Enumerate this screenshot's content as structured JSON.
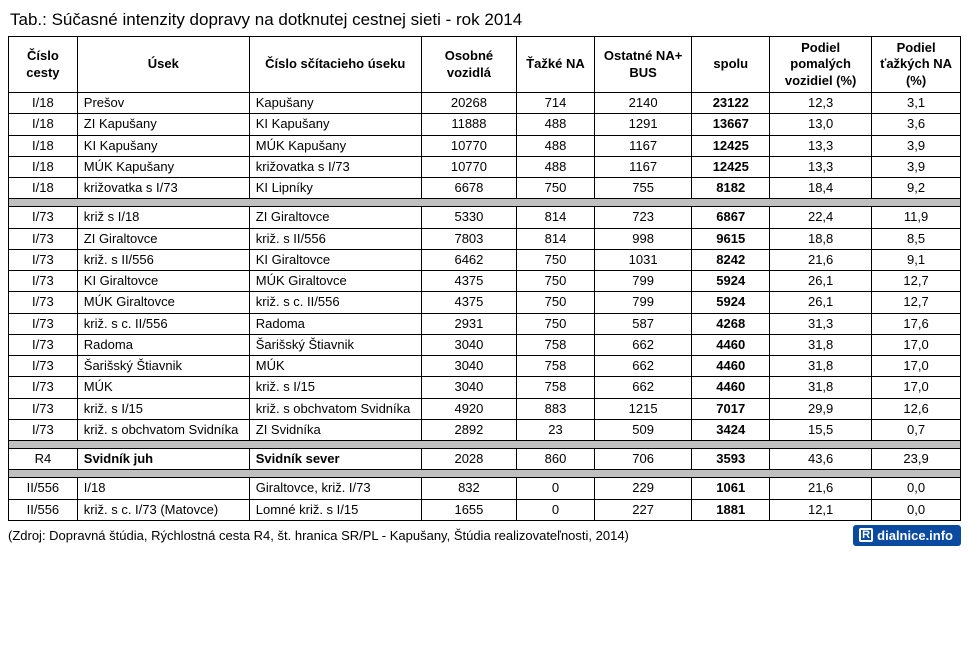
{
  "title": "Tab.: Súčasné intenzity dopravy na dotknutej cestnej sieti - rok 2014",
  "columns": [
    "Číslo cesty",
    "Úsek",
    "Číslo sčítacieho úseku",
    "Osobné vozidlá",
    "Ťažké NA",
    "Ostatné NA+ BUS",
    "spolu",
    "Podiel pomalých vozidiel (%)",
    "Podiel ťažkých NA (%)"
  ],
  "groups": [
    {
      "rows": [
        {
          "c0": "I/18",
          "c1": "Prešov",
          "c2": "Kapušany",
          "c3": "20268",
          "c4": "714",
          "c5": "2140",
          "c6": "23122",
          "c7": "12,3",
          "c8": "3,1"
        },
        {
          "c0": "I/18",
          "c1": "ZI Kapušany",
          "c2": "KI Kapušany",
          "c3": "11888",
          "c4": "488",
          "c5": "1291",
          "c6": "13667",
          "c7": "13,0",
          "c8": "3,6"
        },
        {
          "c0": "I/18",
          "c1": "KI Kapušany",
          "c2": "MÚK Kapušany",
          "c3": "10770",
          "c4": "488",
          "c5": "1167",
          "c6": "12425",
          "c7": "13,3",
          "c8": "3,9"
        },
        {
          "c0": "I/18",
          "c1": "MÚK Kapušany",
          "c2": "križovatka s I/73",
          "c3": "10770",
          "c4": "488",
          "c5": "1167",
          "c6": "12425",
          "c7": "13,3",
          "c8": "3,9"
        },
        {
          "c0": "I/18",
          "c1": "križovatka s I/73",
          "c2": "KI Lipníky",
          "c3": "6678",
          "c4": "750",
          "c5": "755",
          "c6": "8182",
          "c7": "18,4",
          "c8": "9,2"
        }
      ]
    },
    {
      "rows": [
        {
          "c0": "I/73",
          "c1": "križ s I/18",
          "c2": "ZI Giraltovce",
          "c3": "5330",
          "c4": "814",
          "c5": "723",
          "c6": "6867",
          "c7": "22,4",
          "c8": "11,9"
        },
        {
          "c0": "I/73",
          "c1": "ZI Giraltovce",
          "c2": "križ. s II/556",
          "c3": "7803",
          "c4": "814",
          "c5": "998",
          "c6": "9615",
          "c7": "18,8",
          "c8": "8,5"
        },
        {
          "c0": "I/73",
          "c1": "križ. s II/556",
          "c2": "KI Giraltovce",
          "c3": "6462",
          "c4": "750",
          "c5": "1031",
          "c6": "8242",
          "c7": "21,6",
          "c8": "9,1"
        },
        {
          "c0": "I/73",
          "c1": "KI Giraltovce",
          "c2": "MÚK Giraltovce",
          "c3": "4375",
          "c4": "750",
          "c5": "799",
          "c6": "5924",
          "c7": "26,1",
          "c8": "12,7"
        },
        {
          "c0": "I/73",
          "c1": "MÚK Giraltovce",
          "c2": "križ. s c. II/556",
          "c3": "4375",
          "c4": "750",
          "c5": "799",
          "c6": "5924",
          "c7": "26,1",
          "c8": "12,7"
        },
        {
          "c0": "I/73",
          "c1": "križ. s c. II/556",
          "c2": "Radoma",
          "c3": "2931",
          "c4": "750",
          "c5": "587",
          "c6": "4268",
          "c7": "31,3",
          "c8": "17,6"
        },
        {
          "c0": "I/73",
          "c1": "Radoma",
          "c2": "Šarišský Štiavnik",
          "c3": "3040",
          "c4": "758",
          "c5": "662",
          "c6": "4460",
          "c7": "31,8",
          "c8": "17,0"
        },
        {
          "c0": "I/73",
          "c1": "Šarišský Štiavnik",
          "c2": "MÚK",
          "c3": "3040",
          "c4": "758",
          "c5": "662",
          "c6": "4460",
          "c7": "31,8",
          "c8": "17,0"
        },
        {
          "c0": "I/73",
          "c1": "MÚK",
          "c2": "križ. s I/15",
          "c3": "3040",
          "c4": "758",
          "c5": "662",
          "c6": "4460",
          "c7": "31,8",
          "c8": "17,0"
        },
        {
          "c0": "I/73",
          "c1": "križ. s I/15",
          "c2": "križ. s obchvatom Svidníka",
          "c3": "4920",
          "c4": "883",
          "c5": "1215",
          "c6": "7017",
          "c7": "29,9",
          "c8": "12,6"
        },
        {
          "c0": "I/73",
          "c1": "križ. s obchvatom Svidníka",
          "c2": "ZI Svidníka",
          "c3": "2892",
          "c4": "23",
          "c5": "509",
          "c6": "3424",
          "c7": "15,5",
          "c8": "0,7"
        }
      ]
    },
    {
      "rows": [
        {
          "c0": "R4",
          "c1": "Svidník juh",
          "c2": "Svidník sever",
          "c3": "2028",
          "c4": "860",
          "c5": "706",
          "c6": "3593",
          "c7": "43,6",
          "c8": "23,9",
          "boldRow": true
        }
      ]
    },
    {
      "rows": [
        {
          "c0": "II/556",
          "c1": "I/18",
          "c2": "Giraltovce, križ. I/73",
          "c3": "832",
          "c4": "0",
          "c5": "229",
          "c6": "1061",
          "c7": "21,6",
          "c8": "0,0"
        },
        {
          "c0": "II/556",
          "c1": "križ. s c. I/73 (Matovce)",
          "c2": "Lomné križ. s I/15",
          "c3": "1655",
          "c4": "0",
          "c5": "227",
          "c6": "1881",
          "c7": "12,1",
          "c8": "0,0"
        }
      ]
    }
  ],
  "source": "(Zdroj: Dopravná štúdia, Rýchlostná cesta R4, št. hranica SR/PL - Kapušany, Štúdia realizovateľnosti, 2014)",
  "badge": {
    "icon": "R",
    "text": "dialnice.info"
  },
  "style": {
    "separator_bg": "#c0c0c0",
    "badge_bg": "#0a4aa0",
    "badge_fg": "#ffffff"
  }
}
